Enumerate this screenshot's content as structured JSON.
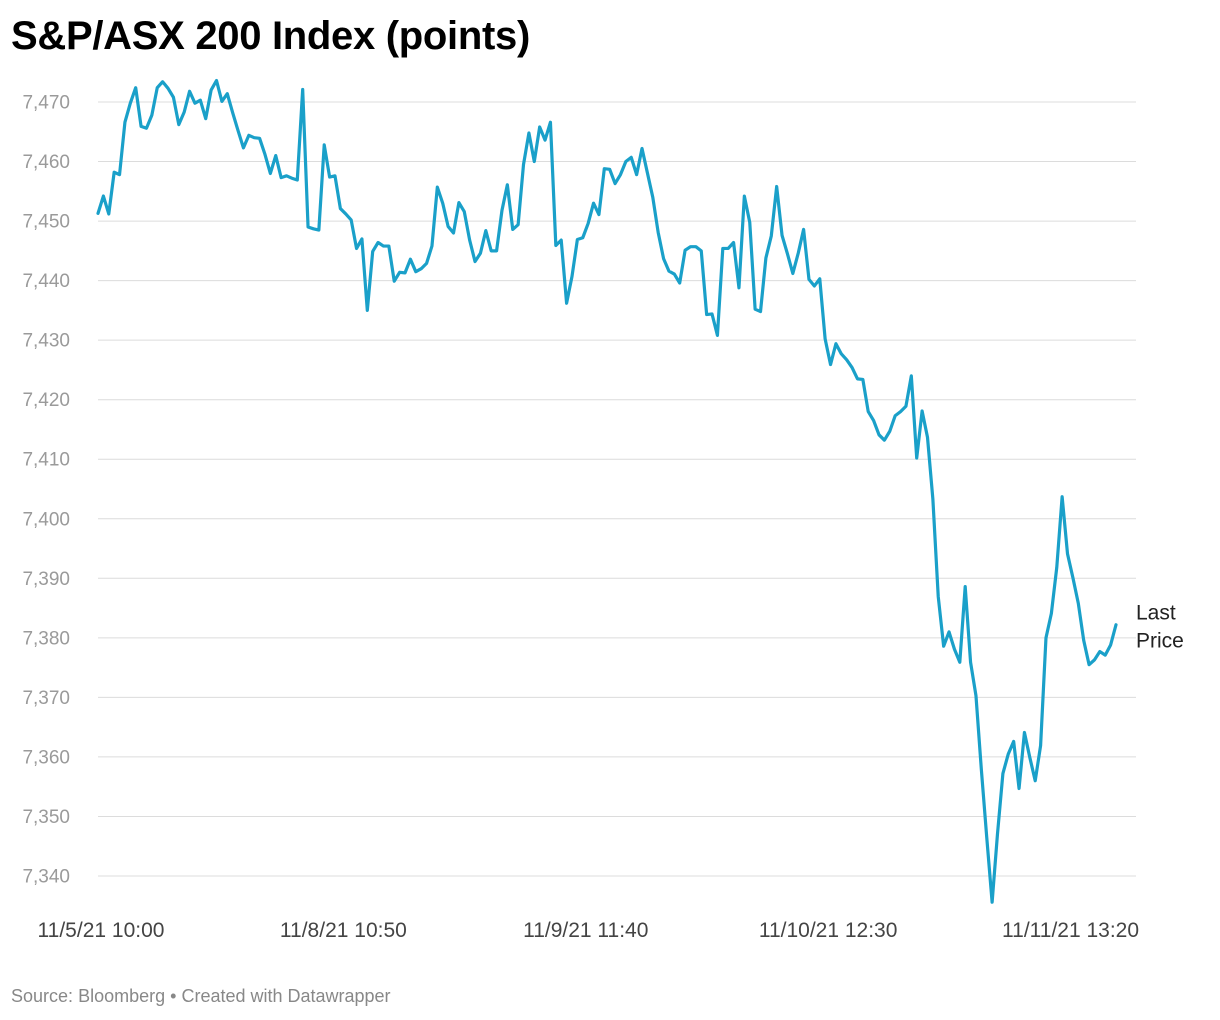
{
  "title": "S&P/ASX 200 Index (points)",
  "footer": {
    "source_label": "Source:",
    "source": "Bloomberg",
    "separator": "•",
    "credit": "Created with Datawrapper"
  },
  "chart_data": {
    "type": "line",
    "title": "S&P/ASX 200 Index (points)",
    "xlabel": "",
    "ylabel": "",
    "ylim": [
      7336,
      7473
    ],
    "y_ticks": [
      7340,
      7350,
      7360,
      7370,
      7380,
      7390,
      7400,
      7410,
      7420,
      7430,
      7440,
      7450,
      7460,
      7470
    ],
    "y_tick_labels": [
      "7,340",
      "7,350",
      "7,360",
      "7,370",
      "7,380",
      "7,390",
      "7,400",
      "7,410",
      "7,420",
      "7,430",
      "7,440",
      "7,450",
      "7,460",
      "7,470"
    ],
    "x_tick_labels": [
      "11/5/21 10:00",
      "11/8/21 10:50",
      "11/9/21 11:40",
      "11/10/21 12:30",
      "11/11/21 13:20"
    ],
    "x_tick_index": [
      0,
      45,
      90,
      135,
      180
    ],
    "grid": true,
    "line_color": "#1aa0c9",
    "end_label": [
      "Last",
      "Price"
    ],
    "series": [
      {
        "values": [
          7451.3,
          7454.2,
          7451.2,
          7458.2,
          7457.8,
          7466.6,
          7469.8,
          7472.4,
          7465.9,
          7465.6,
          7467.8,
          7472.4,
          7473.4,
          7472.3,
          7470.8,
          7466.2,
          7468.3,
          7471.8,
          7469.8,
          7470.3,
          7467.2,
          7472.0,
          7473.6,
          7470.1,
          7471.4,
          7468.2,
          7465.2,
          7462.3,
          7464.4,
          7464.0,
          7463.9,
          7461.2,
          7458.0,
          7461.0,
          7457.3,
          7457.6,
          7457.2,
          7456.9,
          7472.1,
          7449.0,
          7448.7,
          7448.5,
          7462.8,
          7457.4,
          7457.6,
          7452.1,
          7451.2,
          7450.2,
          7445.4,
          7447.0,
          7435.0,
          7444.9,
          7446.4,
          7445.8,
          7445.8,
          7439.9,
          7441.4,
          7441.3,
          7443.6,
          7441.5,
          7442.0,
          7442.9,
          7445.8,
          7455.7,
          7453.0,
          7449.1,
          7448.0,
          7453.1,
          7451.6,
          7446.8,
          7443.2,
          7444.6,
          7448.4,
          7445.0,
          7445.0,
          7451.8,
          7456.1,
          7448.6,
          7449.4,
          7459.5,
          7464.8,
          7460.0,
          7465.8,
          7463.6,
          7466.6,
          7445.9,
          7446.8,
          7436.2,
          7440.7,
          7446.9,
          7447.2,
          7449.6,
          7453.0,
          7451.1,
          7458.8,
          7458.7,
          7456.3,
          7457.8,
          7460.0,
          7460.7,
          7457.8,
          7462.2,
          7458.1,
          7454.0,
          7448.1,
          7443.7,
          7441.6,
          7441.1,
          7439.6,
          7445.1,
          7445.7,
          7445.7,
          7445.0,
          7434.3,
          7434.4,
          7430.8,
          7445.4,
          7445.4,
          7446.4,
          7438.8,
          7454.2,
          7449.8,
          7435.2,
          7434.8,
          7443.8,
          7447.5,
          7455.8,
          7447.6,
          7444.5,
          7441.2,
          7444.6,
          7448.6,
          7440.2,
          7439.1,
          7440.3,
          7430.2,
          7425.9,
          7429.4,
          7427.7,
          7426.7,
          7425.4,
          7423.5,
          7423.4,
          7418.0,
          7416.5,
          7414.1,
          7413.2,
          7414.7,
          7417.3,
          7418.0,
          7418.9,
          7424.0,
          7410.2,
          7418.1,
          7413.7,
          7403.3,
          7386.9,
          7378.6,
          7381.0,
          7378.1,
          7375.9,
          7388.6,
          7375.9,
          7370.3,
          7357.9,
          7346.5,
          7335.6,
          7347.1,
          7357.2,
          7360.5,
          7362.6,
          7354.7,
          7364.1,
          7359.9,
          7356.0,
          7361.9,
          7380.0,
          7384.1,
          7391.8,
          7403.7,
          7394.1,
          7390.1,
          7385.8,
          7379.6,
          7375.5,
          7376.3,
          7377.7,
          7377.1,
          7378.8,
          7382.2
        ]
      }
    ]
  }
}
